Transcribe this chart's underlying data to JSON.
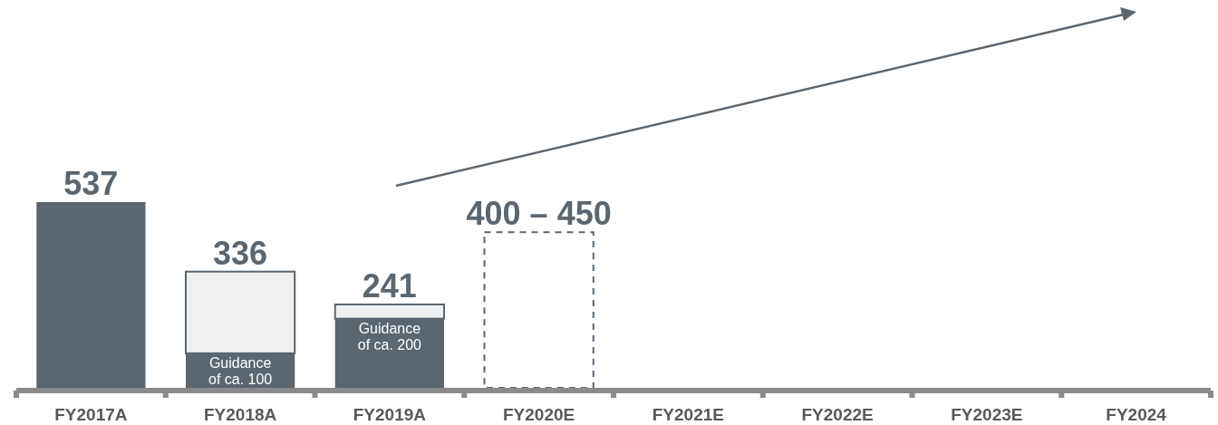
{
  "chart_data": {
    "type": "bar",
    "stacked": true,
    "categories": [
      "FY2017A",
      "FY2018A",
      "FY2019A",
      "FY2020E",
      "FY2021E",
      "FY2022E",
      "FY2023E",
      "FY2024"
    ],
    "series": [
      {
        "color": "#5a6670",
        "values": [
          537,
          100,
          200,
          null,
          null,
          null,
          null,
          null
        ],
        "value_labels": [
          null,
          "Guidance of ca. 100",
          "Guidance of ca. 200",
          null,
          null,
          null,
          null,
          null
        ]
      },
      {
        "color": "#f0f0f0",
        "values": [
          null,
          236,
          41,
          null,
          null,
          null,
          null,
          null
        ]
      },
      {
        "color": "#5a6670",
        "line_style": "dashed",
        "values": [
          null,
          null,
          null,
          450,
          null,
          null,
          null,
          null
        ]
      }
    ],
    "totals": [
      "537",
      "336",
      "241",
      null,
      null,
      null,
      null,
      null
    ],
    "annotations": [
      {
        "text": "400 – 450",
        "x": "FY2020E",
        "y": 450
      }
    ]
  }
}
